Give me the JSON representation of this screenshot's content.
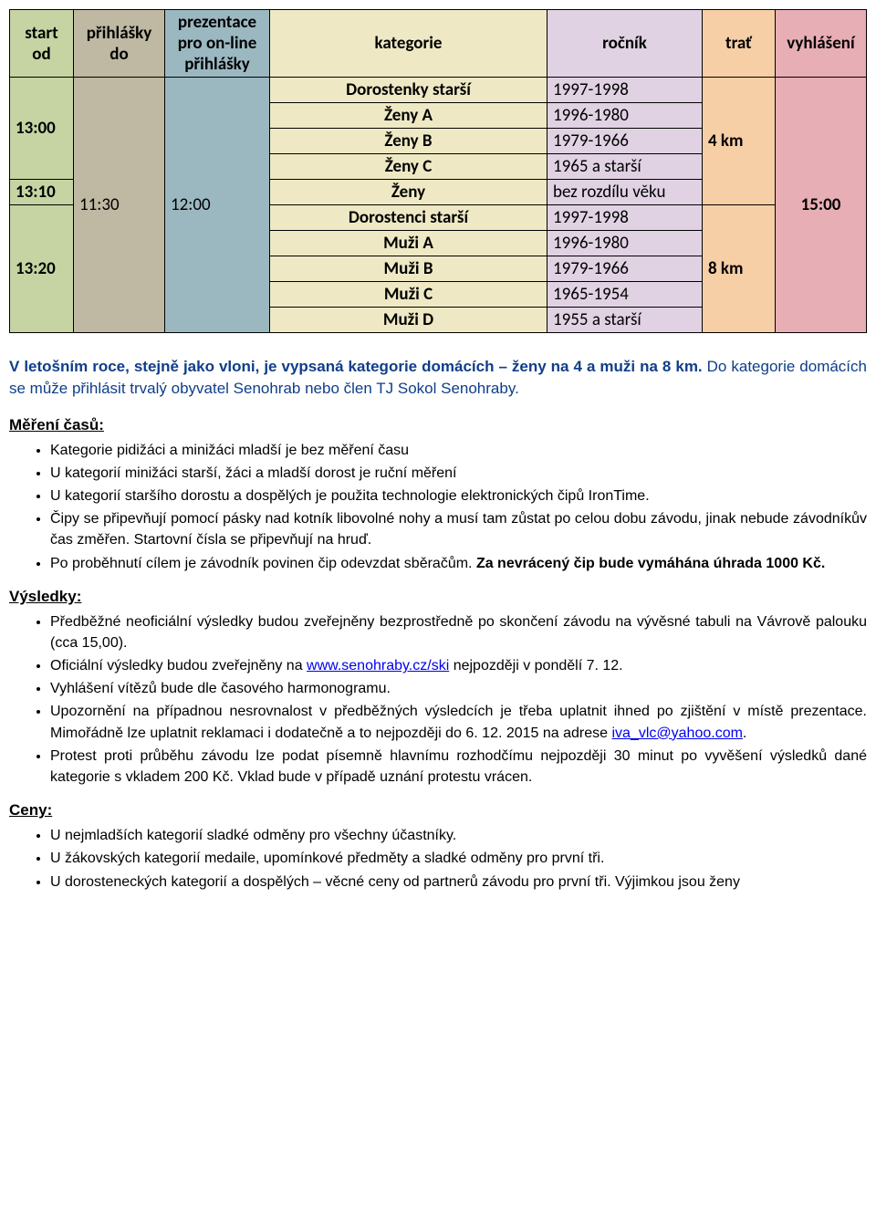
{
  "table": {
    "headers": {
      "start": "start od",
      "prihlasky": "přihlášky do",
      "prezentace": "prezentace pro on-line přihlášky",
      "kategorie": "kategorie",
      "rocnik": "ročník",
      "trat": "trať",
      "vyhlaseni": "vyhlášení"
    },
    "start_times": [
      "13:00",
      "13:10",
      "13:20"
    ],
    "prihlasky_time": "11:30",
    "prezentace_time": "12:00",
    "rows": [
      {
        "kat": "Dorostenky starší",
        "roc": "1997-1998"
      },
      {
        "kat": "Ženy A",
        "roc": "1996-1980"
      },
      {
        "kat": "Ženy B",
        "roc": "1979-1966"
      },
      {
        "kat": "Ženy C",
        "roc": "1965 a starší"
      },
      {
        "kat": "Ženy",
        "roc": "bez rozdílu věku"
      },
      {
        "kat": "Dorostenci starší",
        "roc": "1997-1998"
      },
      {
        "kat": "Muži A",
        "roc": "1996-1980"
      },
      {
        "kat": "Muži B",
        "roc": "1979-1966"
      },
      {
        "kat": "Muži C",
        "roc": "1965-1954"
      },
      {
        "kat": "Muži D",
        "roc": "1955 a starší"
      }
    ],
    "trat_values": [
      "4 km",
      "8 km"
    ],
    "vyhlaseni_time": "15:00"
  },
  "intro_p1": "V letošním roce, stejně jako vloni, je vypsaná kategorie domácích – ženy na 4 a muži na 8 km.",
  "intro_p2": " Do kategorie domácích se může přihlásit trvalý obyvatel Senohrab nebo člen TJ Sokol Senohraby.",
  "sections": {
    "mereni": {
      "title": "Měření časů:",
      "items": [
        "Kategorie pidižáci  a minižáci mladší je bez měření času",
        "U kategorií minižáci starší, žáci a mladší dorost je ruční měření",
        "U kategorií staršího dorostu a dospělých je použita technologie elektronických čipů IronTime.",
        "Čipy se připevňují pomocí pásky nad kotník libovolné nohy a musí tam zůstat po celou dobu závodu, jinak nebude závodníkův čas změřen. Startovní čísla se připevňují na hruď.",
        {
          "pre": "Po proběhnutí cílem je závodník povinen čip odevzdat sběračům. ",
          "bold": "Za nevrácený čip bude vymáhána úhrada 1000 Kč."
        }
      ]
    },
    "vysledky": {
      "title": "Výsledky:",
      "items": [
        "Předběžné neoficiální výsledky budou zveřejněny bezprostředně po skončení závodu na vývěsné tabuli na Vávrově palouku (cca 15,00).",
        {
          "pre": "Oficiální výsledky budou zveřejněny na ",
          "link": "www.senohraby.cz/ski",
          "post": " nejpozději v pondělí 7. 12."
        },
        "Vyhlášení vítězů bude dle časového harmonogramu.",
        {
          "pre": "Upozornění na případnou nesrovnalost v předběžných výsledcích je třeba uplatnit ihned po zjištění v místě prezentace. Mimořádně lze uplatnit reklamaci i dodatečně a to nejpozději do 6. 12. 2015 na adrese ",
          "link": "iva_vlc@yahoo.com",
          "post": "."
        },
        "Protest proti průběhu závodu lze podat písemně hlavnímu rozhodčímu nejpozději 30 minut po vyvěšení výsledků dané kategorie s vkladem 200 Kč. Vklad bude v případě uznání protestu vrácen."
      ]
    },
    "ceny": {
      "title": "Ceny:",
      "items": [
        "U nejmladších kategorií sladké odměny pro všechny účastníky.",
        "U žákovských kategorií medaile, upomínkové předměty a sladké odměny pro první tři.",
        "U dorosteneckých kategorií a dospělých – věcné ceny od partnerů závodu pro první tři. Výjimkou jsou ženy"
      ]
    }
  }
}
